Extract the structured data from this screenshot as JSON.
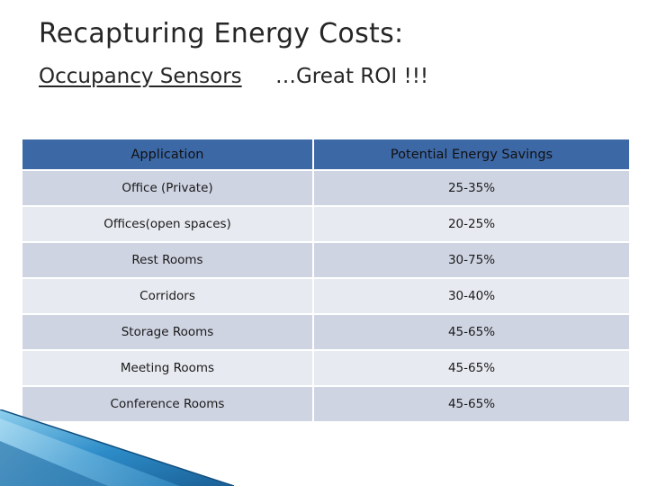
{
  "header": {
    "title": "Recapturing Energy Costs:",
    "subtitle_left": "Occupancy Sensors",
    "subtitle_right": "…Great ROI  !!!"
  },
  "table": {
    "columns": [
      "Application",
      "Potential Energy Savings"
    ],
    "rows": [
      {
        "application": "Office (Private)",
        "savings": "25-35%"
      },
      {
        "application": "Offices(open spaces)",
        "savings": "20-25%"
      },
      {
        "application": "Rest Rooms",
        "savings": "30-75%"
      },
      {
        "application": "Corridors",
        "savings": "30-40%"
      },
      {
        "application": "Storage Rooms",
        "savings": "45-65%"
      },
      {
        "application": "Meeting Rooms",
        "savings": "45-65%"
      },
      {
        "application": "Conference Rooms",
        "savings": "45-65%"
      }
    ]
  },
  "colors": {
    "header_bg": "#3d68a6",
    "row_dark": "#cfd4e2",
    "row_light": "#e8eaf1",
    "accent_blue": "#2d8cc8"
  }
}
